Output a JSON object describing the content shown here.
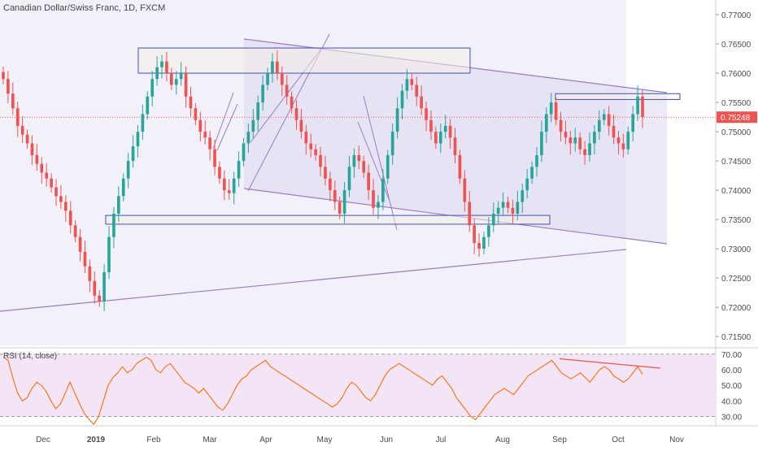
{
  "chart_data": [
    {
      "type": "candlestick",
      "title": "Canadian Dollar/Swiss Franc, 1D, FXCM",
      "price_axis_ticks": [
        "0.77000",
        "0.76500",
        "0.76000",
        "0.75500",
        "0.75000",
        "0.74500",
        "0.74000",
        "0.73500",
        "0.73000",
        "0.72500",
        "0.72000",
        "0.71500"
      ],
      "ylim": [
        0.7135,
        0.7725
      ],
      "current_price": {
        "label": "0.75248",
        "value": 0.75248,
        "color": "#ef5350"
      },
      "colors": {
        "up": "#26a69a",
        "down": "#ef5350",
        "range_shade": "#e9e6f5",
        "pattern_shade": "#ddd8f0",
        "trendline": "#9c7bbf",
        "zone_border": "#3f51b5",
        "zone_fill": "#f5efe8"
      },
      "x_axis_labels": [
        "Dec",
        "2019",
        "Feb",
        "Mar",
        "Apr",
        "May",
        "Jun",
        "Jul",
        "Aug",
        "Sep",
        "Oct",
        "Nov"
      ],
      "series": [
        {
          "approx_closes": [
            0.759,
            0.7565,
            0.754,
            0.751,
            0.7495,
            0.748,
            0.746,
            0.7445,
            0.743,
            0.742,
            0.7405,
            0.739,
            0.738,
            0.7365,
            0.734,
            0.732,
            0.7295,
            0.727,
            0.7245,
            0.722,
            0.721,
            0.726,
            0.732,
            0.736,
            0.739,
            0.742,
            0.745,
            0.7475,
            0.75,
            0.753,
            0.756,
            0.759,
            0.761,
            0.762,
            0.76,
            0.758,
            0.759,
            0.76,
            0.756,
            0.754,
            0.752,
            0.75,
            0.749,
            0.747,
            0.744,
            0.742,
            0.74,
            0.7395,
            0.742,
            0.745,
            0.748,
            0.75,
            0.752,
            0.755,
            0.758,
            0.76,
            0.762,
            0.76,
            0.758,
            0.756,
            0.754,
            0.752,
            0.75,
            0.748,
            0.747,
            0.746,
            0.744,
            0.742,
            0.74,
            0.738,
            0.736,
            0.74,
            0.744,
            0.746,
            0.745,
            0.743,
            0.74,
            0.737,
            0.738,
            0.742,
            0.746,
            0.75,
            0.754,
            0.757,
            0.759,
            0.758,
            0.756,
            0.754,
            0.752,
            0.75,
            0.748,
            0.75,
            0.751,
            0.749,
            0.746,
            0.742,
            0.738,
            0.734,
            0.731,
            0.73,
            0.732,
            0.734,
            0.736,
            0.737,
            0.738,
            0.737,
            0.736,
            0.738,
            0.74,
            0.742,
            0.744,
            0.746,
            0.75,
            0.753,
            0.755,
            0.752,
            0.75,
            0.749,
            0.748,
            0.749,
            0.747,
            0.746,
            0.748,
            0.75,
            0.752,
            0.753,
            0.751,
            0.749,
            0.748,
            0.747,
            0.75,
            0.753,
            0.756,
            0.7525
          ]
        }
      ],
      "drawn_zones": [
        {
          "name": "resistance",
          "y_range": [
            0.76,
            0.7643
          ]
        },
        {
          "name": "support",
          "y_range": [
            0.7342,
            0.7357
          ]
        },
        {
          "name": "recent-high",
          "y_range": [
            0.7555,
            0.7565
          ]
        }
      ]
    },
    {
      "type": "line",
      "title": "RSI (14, close)",
      "y_ticks": [
        "70.00",
        "60.00",
        "50.00",
        "40.00",
        "30.00"
      ],
      "ylim": [
        24,
        73
      ],
      "overbought": 70,
      "oversold": 30,
      "colors": {
        "line": "#ff6d00",
        "band": "#f3e5f5",
        "divergence": "#ef5350"
      },
      "values": [
        68,
        66,
        55,
        45,
        40,
        42,
        48,
        52,
        50,
        46,
        40,
        35,
        38,
        45,
        52,
        45,
        38,
        32,
        28,
        25,
        30,
        40,
        50,
        55,
        58,
        62,
        58,
        60,
        64,
        66,
        68,
        66,
        60,
        58,
        62,
        64,
        60,
        56,
        52,
        50,
        48,
        45,
        48,
        44,
        40,
        36,
        34,
        38,
        44,
        50,
        54,
        56,
        60,
        62,
        64,
        66,
        62,
        60,
        58,
        56,
        54,
        52,
        50,
        48,
        46,
        44,
        42,
        40,
        38,
        36,
        38,
        42,
        48,
        52,
        50,
        46,
        42,
        40,
        44,
        50,
        56,
        60,
        62,
        64,
        62,
        60,
        58,
        56,
        54,
        52,
        50,
        54,
        56,
        52,
        48,
        42,
        38,
        34,
        30,
        28,
        32,
        36,
        40,
        44,
        46,
        48,
        46,
        44,
        48,
        52,
        56,
        58,
        60,
        62,
        64,
        66,
        62,
        58,
        56,
        54,
        56,
        58,
        55,
        52,
        56,
        60,
        62,
        60,
        56,
        54,
        52,
        54,
        58,
        62,
        57
      ]
    }
  ]
}
